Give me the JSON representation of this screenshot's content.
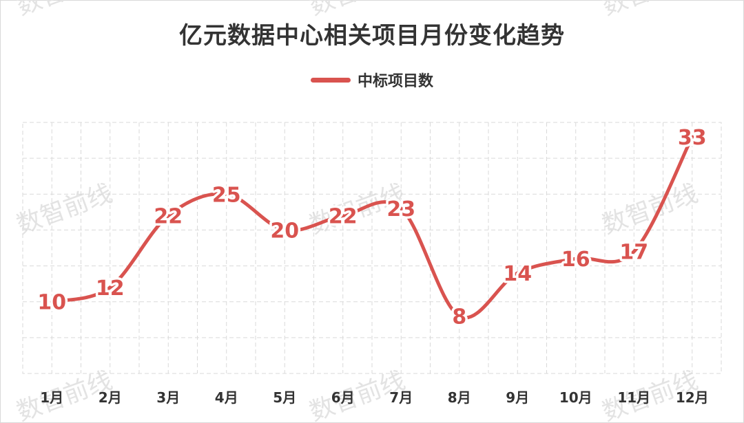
{
  "chart_data": {
    "type": "line",
    "title": "亿元数据中心相关项目月份变化趋势",
    "categories": [
      "1月",
      "2月",
      "3月",
      "4月",
      "5月",
      "6月",
      "7月",
      "8月",
      "9月",
      "10月",
      "11月",
      "12月"
    ],
    "series": [
      {
        "name": "中标项目数",
        "values": [
          10,
          12,
          22,
          25,
          20,
          22,
          23,
          8,
          14,
          16,
          17,
          33
        ]
      }
    ],
    "ylim": [
      0,
      35
    ],
    "grid": true,
    "legend": "top-center",
    "colors": {
      "line": "#d9534f",
      "label": "#d9534f",
      "grid": "#d9d9d9"
    }
  },
  "watermark": "数智前线"
}
